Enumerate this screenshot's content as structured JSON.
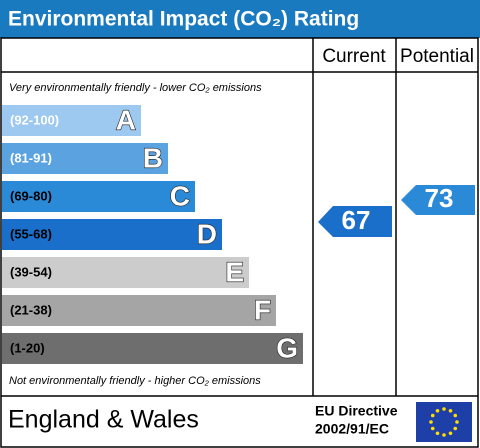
{
  "header": {
    "title": "Environmental Impact (CO₂) Rating"
  },
  "columns": {
    "current": "Current",
    "potential": "Potential"
  },
  "top_note": "Very environmentally friendly - lower CO₂ emissions",
  "bottom_note": "Not environmentally friendly - higher CO₂ emissions",
  "bands": [
    {
      "range": "(92-100)",
      "letter": "A"
    },
    {
      "range": "(81-91)",
      "letter": "B"
    },
    {
      "range": "(69-80)",
      "letter": "C"
    },
    {
      "range": "(55-68)",
      "letter": "D"
    },
    {
      "range": "(39-54)",
      "letter": "E"
    },
    {
      "range": "(21-38)",
      "letter": "F"
    },
    {
      "range": "(1-20)",
      "letter": "G"
    }
  ],
  "ratings": {
    "current": 67,
    "potential": 73
  },
  "footer": {
    "region": "England & Wales",
    "directive_line1": "EU Directive",
    "directive_line2": "2002/91/EC"
  }
}
